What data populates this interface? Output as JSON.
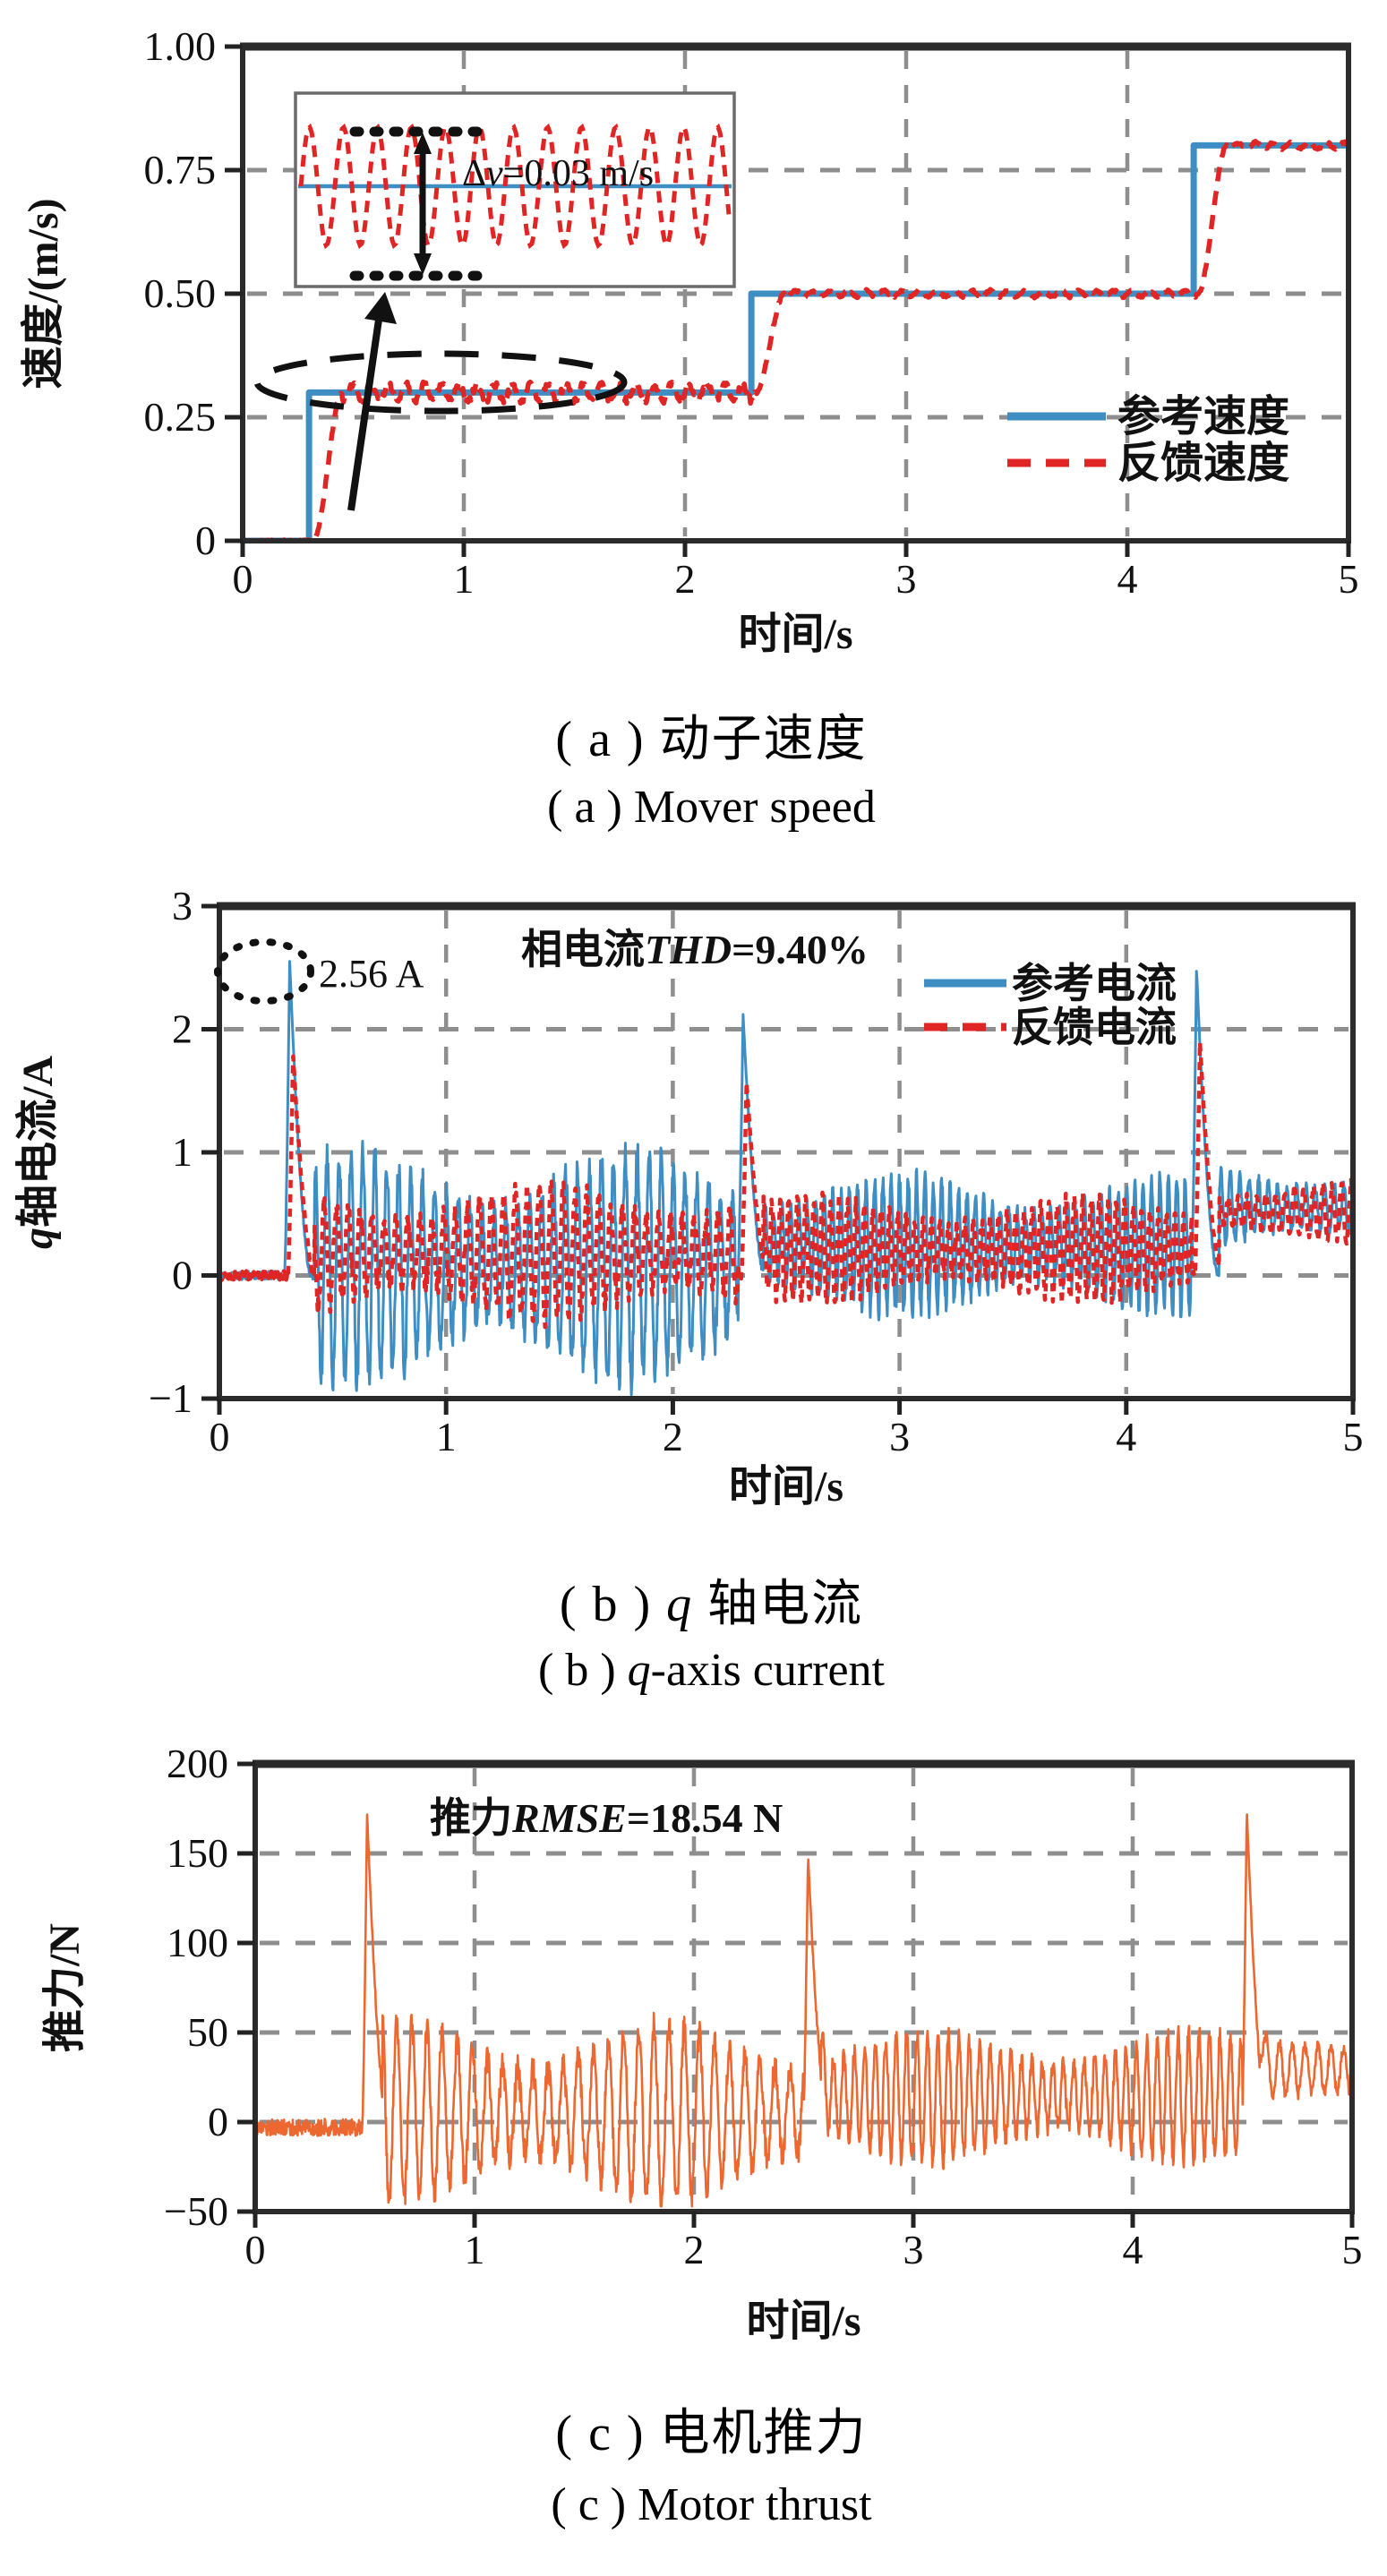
{
  "figure": {
    "colors": {
      "reference_blue": "#3E8EC4",
      "feedback_red": "#E02525",
      "thrust_orange": "#EC6830",
      "grid_gray": "#8E8E8E",
      "frame_dark": "#2B2B2B",
      "annotation_black": "#111111",
      "inset_border_gray": "#6B6B6B"
    },
    "captions": {
      "a": {
        "zh": {
          "pre": "( a ) 动子速度",
          "it": "",
          "post": ""
        },
        "en": {
          "pre": "( a ) Mover speed",
          "it": "",
          "post": ""
        }
      },
      "b": {
        "zh": {
          "pre": "( b ) ",
          "it": "q",
          "post": " 轴电流"
        },
        "en": {
          "pre": "( b ) ",
          "it": "q",
          "post": "-axis current"
        }
      },
      "c": {
        "zh": {
          "pre": "( c ) 电机推力",
          "it": "",
          "post": ""
        },
        "en": {
          "pre": "( c ) Motor thrust",
          "it": "",
          "post": ""
        }
      }
    }
  },
  "chart_data": [
    {
      "id": "speed",
      "type": "line",
      "xlabel": "时间/s",
      "ylabel": {
        "pre": "速度/(m/s)",
        "it": "",
        "post": ""
      },
      "xlim": [
        0,
        5
      ],
      "ylim": [
        0,
        1.0
      ],
      "xticks": {
        "values": [
          0,
          1,
          2,
          3,
          4,
          5
        ],
        "labels": [
          "0",
          "1",
          "2",
          "3",
          "4",
          "5"
        ]
      },
      "yticks": {
        "values": [
          0,
          0.25,
          0.5,
          0.75,
          1.0
        ],
        "labels": [
          "0",
          "0.25",
          "0.50",
          "0.75",
          "1.00"
        ]
      },
      "grid": "dashed",
      "legend": {
        "position": "right-middle",
        "items": [
          {
            "label": "参考速度",
            "color": "#3E8EC4",
            "style": "solid"
          },
          {
            "label": "反馈速度",
            "color": "#E02525",
            "style": "dashed"
          }
        ]
      },
      "series": [
        {
          "name": "参考速度",
          "color": "#3E8EC4",
          "style": "solid",
          "gen": "steps",
          "points": [
            [
              0,
              0
            ],
            [
              0.3,
              0
            ],
            [
              0.3,
              0.3
            ],
            [
              2.3,
              0.3
            ],
            [
              2.3,
              0.5
            ],
            [
              4.3,
              0.5
            ],
            [
              4.3,
              0.8
            ],
            [
              5,
              0.8
            ]
          ]
        },
        {
          "name": "反馈速度",
          "color": "#E02525",
          "style": "dashed",
          "gen": "tracking",
          "steps": [
            [
              0.3,
              0.3
            ],
            [
              2.3,
              0.5
            ],
            [
              4.3,
              0.8
            ]
          ],
          "rise": 0.13,
          "lag": 0.02,
          "ripple": [
            0.016,
            0.006,
            0.006
          ],
          "freq": 12.5
        }
      ],
      "annotations": {
        "inset_note": {
          "pre": "Δ",
          "it": "v",
          "post": "=0.03 m/s"
        },
        "inset_ripple_peak_to_peak_mps": 0.03,
        "highlight": "dashed-ellipse-on-0.3-step-ripple"
      }
    },
    {
      "id": "current",
      "type": "line",
      "xlabel": "时间/s",
      "ylabel": {
        "pre": "",
        "it": "q",
        "post": "轴电流/A"
      },
      "xlim": [
        0,
        5
      ],
      "ylim": [
        -1,
        3
      ],
      "xticks": {
        "values": [
          0,
          1,
          2,
          3,
          4,
          5
        ],
        "labels": [
          "0",
          "1",
          "2",
          "3",
          "4",
          "5"
        ]
      },
      "yticks": {
        "values": [
          -1,
          0,
          1,
          2,
          3
        ],
        "labels": [
          "−1",
          "0",
          "1",
          "2",
          "3"
        ]
      },
      "grid": "dashed",
      "legend": {
        "position": "upper-right",
        "items": [
          {
            "label": "参考电流",
            "color": "#3E8EC4",
            "style": "solid"
          },
          {
            "label": "反馈电流",
            "color": "#E02525",
            "style": "dashed"
          }
        ]
      },
      "series": [
        {
          "name": "参考电流",
          "color": "#3E8EC4",
          "style": "solid",
          "gen": "osc",
          "seed": 11,
          "baseline": 0,
          "noise": 0.012,
          "spikes": [
            {
              "t": 0.31,
              "peak": 2.56
            },
            {
              "t": 2.31,
              "peak": 2.12
            },
            {
              "t": 4.31,
              "peak": 2.5
            }
          ],
          "bands": [
            {
              "t0": 0.42,
              "t1": 2.29,
              "hi": 0.98,
              "lo": -0.85,
              "freq": 19
            },
            {
              "t0": 2.4,
              "t1": 4.29,
              "hi": 0.8,
              "lo": -0.3,
              "freq": 27
            },
            {
              "t0": 4.41,
              "t1": 5.0,
              "hi": 0.88,
              "lo": 0.22,
              "freq": 24
            }
          ]
        },
        {
          "name": "反馈电流",
          "color": "#E02525",
          "style": "dashed",
          "gen": "osc",
          "seed": 13,
          "baseline": 0,
          "noise": 0.012,
          "spikes": [
            {
              "t": 0.325,
              "peak": 1.8
            },
            {
              "t": 2.325,
              "peak": 1.58
            },
            {
              "t": 4.325,
              "peak": 1.9
            }
          ],
          "bands": [
            {
              "t0": 0.42,
              "t1": 2.29,
              "hi": 0.72,
              "lo": -0.35,
              "freq": 19
            },
            {
              "t0": 2.4,
              "t1": 4.29,
              "hi": 0.62,
              "lo": -0.2,
              "freq": 27
            },
            {
              "t0": 4.41,
              "t1": 5.0,
              "hi": 0.75,
              "lo": 0.28,
              "freq": 24
            }
          ]
        }
      ],
      "annotations": {
        "peak_label": "2.56 A",
        "thd_note": {
          "pre": "相电流",
          "it": "THD",
          "post": "=9.40%"
        },
        "highlight": "dotted-ellipse-on-first-peak"
      }
    },
    {
      "id": "thrust",
      "type": "line",
      "xlabel": "时间/s",
      "ylabel": {
        "pre": "推力/N",
        "it": "",
        "post": ""
      },
      "xlim": [
        0,
        5
      ],
      "ylim": [
        -50,
        200
      ],
      "xticks": {
        "values": [
          0,
          1,
          2,
          3,
          4,
          5
        ],
        "labels": [
          "0",
          "1",
          "2",
          "3",
          "4",
          "5"
        ]
      },
      "yticks": {
        "values": [
          -50,
          0,
          50,
          100,
          150,
          200
        ],
        "labels": [
          "−50",
          "0",
          "50",
          "100",
          "150",
          "200"
        ]
      },
      "grid": "dashed",
      "series": [
        {
          "name": "推力",
          "color": "#EC6830",
          "style": "solid",
          "gen": "osc",
          "seed": 17,
          "baseline": -3,
          "noise": 1.6,
          "spikes": [
            {
              "t": 0.51,
              "peak": 173
            },
            {
              "t": 2.52,
              "peak": 150
            },
            {
              "t": 4.52,
              "peak": 175
            }
          ],
          "bands": [
            {
              "t0": 0.58,
              "t1": 2.5,
              "hi": 55,
              "lo": -44,
              "freq": 14.5
            },
            {
              "t0": 2.58,
              "t1": 4.5,
              "hi": 50,
              "lo": -22,
              "freq": 21
            },
            {
              "t0": 4.58,
              "t1": 5.0,
              "hi": 55,
              "lo": 4,
              "freq": 17
            }
          ]
        }
      ],
      "annotations": {
        "rmse_note": {
          "pre": "推力",
          "it": "RMSE",
          "post": "=18.54 N"
        }
      }
    }
  ]
}
